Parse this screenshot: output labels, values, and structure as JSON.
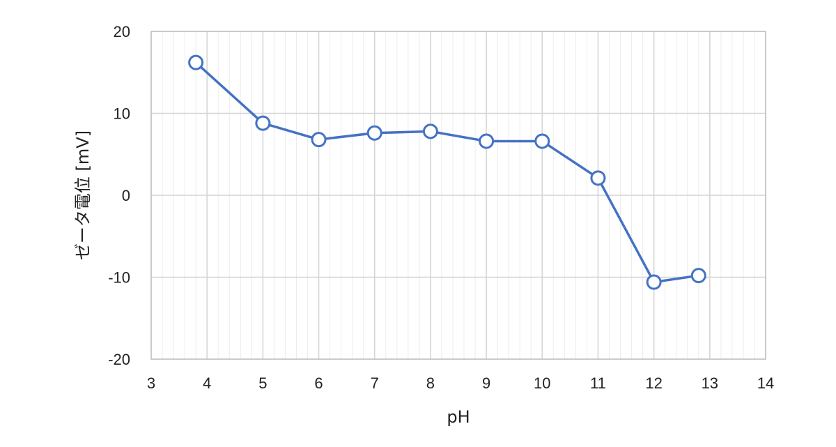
{
  "chart_data": {
    "type": "scatter",
    "title": "",
    "xlabel": "pH",
    "ylabel": "ゼータ電位 [mV]",
    "xlim": [
      3,
      14
    ],
    "ylim": [
      -20,
      20
    ],
    "x_ticks": [
      3,
      4,
      5,
      6,
      7,
      8,
      9,
      10,
      11,
      12,
      13,
      14
    ],
    "y_ticks": [
      20,
      10,
      0,
      -10,
      -20
    ],
    "x_minor_step": 0.2,
    "grid": true,
    "legend": "none",
    "series": [
      {
        "color": "#4472c4",
        "marker": "open-circle",
        "line": true,
        "x": [
          3.8,
          5.0,
          6.0,
          7.0,
          8.0,
          9.0,
          10.0,
          11.0,
          12.0,
          12.8
        ],
        "y": [
          16.2,
          8.8,
          6.8,
          7.6,
          7.8,
          6.6,
          6.6,
          2.1,
          -10.6,
          -9.8
        ]
      }
    ]
  }
}
